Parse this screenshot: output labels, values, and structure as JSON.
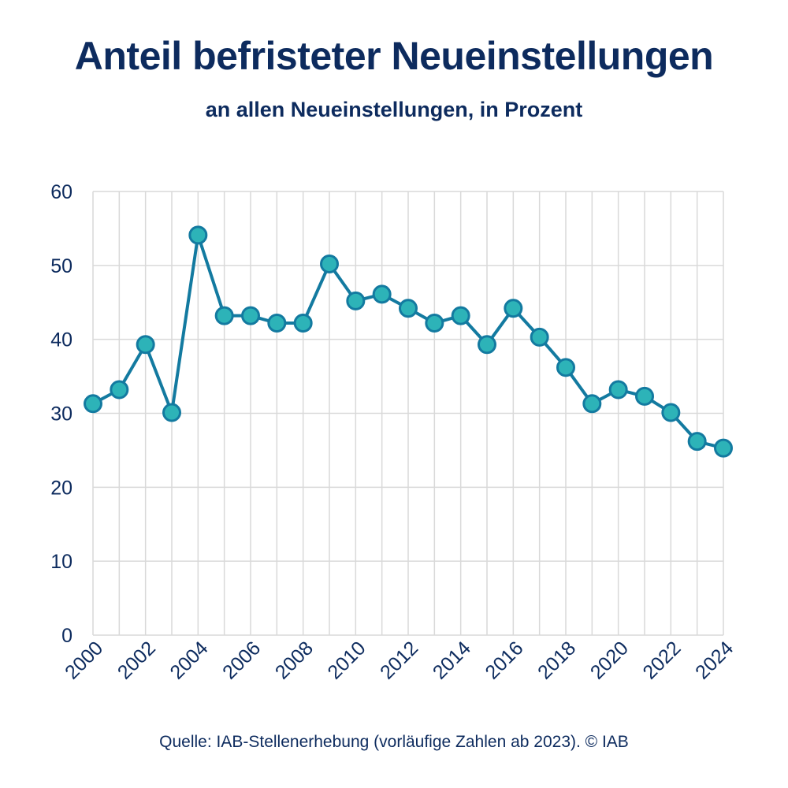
{
  "title": "Anteil befristeter Neueinstellungen",
  "subtitle": "an allen Neueinstellungen, in Prozent",
  "source": "Quelle: IAB-Stellenerhebung (vorläufige Zahlen ab 2023). © IAB",
  "colors": {
    "line": "#137aa0",
    "marker_fill": "#2db3b8",
    "grid": "#d9d9d9",
    "text": "#0d2b5e"
  },
  "chart_data": {
    "type": "line",
    "title": "Anteil befristeter Neueinstellungen",
    "subtitle": "an allen Neueinstellungen, in Prozent",
    "xlabel": "",
    "ylabel": "",
    "ylim": [
      0,
      60
    ],
    "yticks": [
      0,
      10,
      20,
      30,
      40,
      50,
      60
    ],
    "x": [
      2000,
      2001,
      2002,
      2003,
      2004,
      2005,
      2006,
      2007,
      2008,
      2009,
      2010,
      2011,
      2012,
      2013,
      2014,
      2015,
      2016,
      2017,
      2018,
      2019,
      2020,
      2021,
      2022,
      2023,
      2024
    ],
    "xtick_labels": [
      "2000",
      "2002",
      "2004",
      "2006",
      "2008",
      "2010",
      "2012",
      "2014",
      "2016",
      "2018",
      "2020",
      "2022",
      "2024"
    ],
    "series": [
      {
        "name": "Anteil befristeter Neueinstellungen",
        "values": [
          31.3,
          33.2,
          39.3,
          30.1,
          54.1,
          43.2,
          43.2,
          42.2,
          42.2,
          50.2,
          45.2,
          46.1,
          44.2,
          42.2,
          43.2,
          39.3,
          44.2,
          40.3,
          36.2,
          31.3,
          33.2,
          32.3,
          30.1,
          26.2,
          25.3
        ]
      }
    ],
    "grid": true,
    "legend": "none"
  }
}
